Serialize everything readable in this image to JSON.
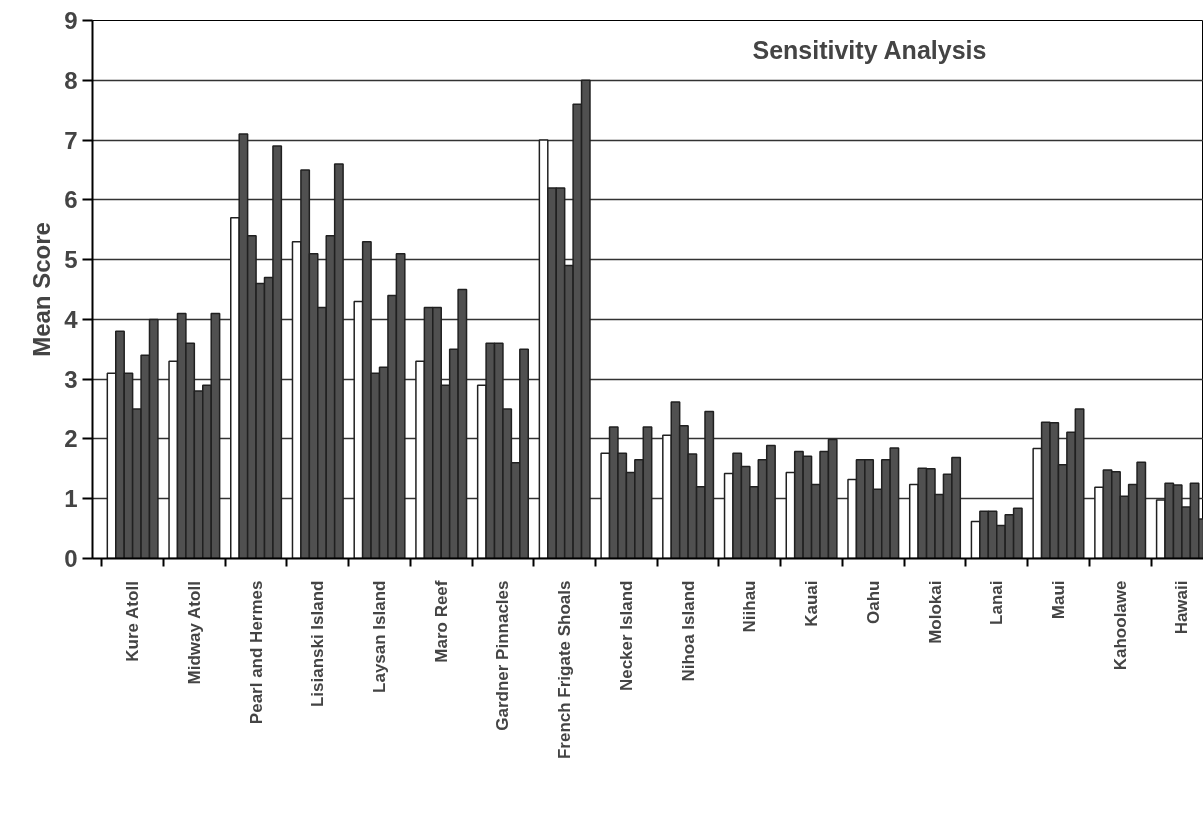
{
  "chart_data": {
    "type": "bar",
    "title": "Sensitivity Analysis",
    "ylabel": "Mean Score",
    "categories": [
      "Kure Atoll",
      "Midway Atoll",
      "Pearl and Hermes",
      "Lisianski Island",
      "Laysan Island",
      "Maro Reef",
      "Gardner Pinnacles",
      "French Frigate Shoals",
      "Necker Island",
      "Nihoa Island",
      "Niihau",
      "Kauai",
      "Oahu",
      "Molokai",
      "Lanai",
      "Maui",
      "Kahoolawe",
      "Hawaii"
    ],
    "series": [
      {
        "color": "#ffffff",
        "values": [
          3.1,
          3.3,
          5.7,
          5.3,
          4.3,
          3.3,
          2.9,
          7.0,
          1.76,
          2.06,
          1.42,
          1.44,
          1.32,
          1.24,
          0.62,
          1.84,
          1.19,
          0.98
        ]
      },
      {
        "color": "#505050",
        "values": [
          3.8,
          4.1,
          7.1,
          6.5,
          5.3,
          4.2,
          3.6,
          6.2,
          2.2,
          2.62,
          1.76,
          1.79,
          1.65,
          1.51,
          0.79,
          2.28,
          1.48,
          1.26
        ]
      },
      {
        "color": "#505050",
        "values": [
          3.1,
          3.6,
          5.4,
          5.1,
          3.1,
          4.2,
          3.6,
          6.2,
          1.76,
          2.22,
          1.54,
          1.71,
          1.65,
          1.5,
          0.79,
          2.27,
          1.45,
          1.23
        ]
      },
      {
        "color": "#505050",
        "values": [
          2.5,
          2.8,
          4.6,
          4.2,
          3.2,
          2.9,
          2.5,
          4.9,
          1.44,
          1.75,
          1.2,
          1.24,
          1.16,
          1.07,
          0.55,
          1.57,
          1.04,
          0.86
        ]
      },
      {
        "color": "#505050",
        "values": [
          3.4,
          2.9,
          4.7,
          5.4,
          4.4,
          3.5,
          1.6,
          7.6,
          1.65,
          1.2,
          1.65,
          1.79,
          1.65,
          1.41,
          0.73,
          2.11,
          1.24,
          1.26
        ]
      },
      {
        "color": "#505050",
        "values": [
          4.0,
          4.1,
          6.9,
          6.6,
          5.1,
          4.5,
          3.5,
          8.0,
          2.2,
          2.46,
          1.89,
          1.99,
          1.85,
          1.69,
          0.84,
          2.5,
          1.61,
          0.66
        ]
      }
    ],
    "ylim": [
      0,
      9
    ],
    "yticks": [
      0,
      1,
      2,
      3,
      4,
      5,
      6,
      7,
      8,
      9
    ],
    "grid": "y"
  }
}
